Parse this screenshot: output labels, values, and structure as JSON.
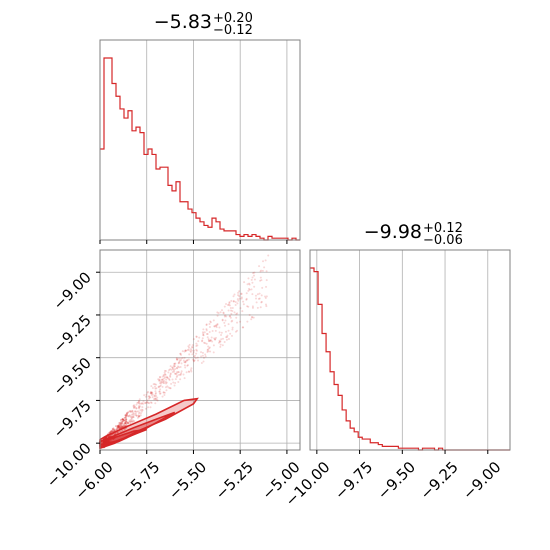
{
  "colors": {
    "accent": "#d62728",
    "grid": "#b0b0b0",
    "frame": "#808080"
  },
  "chart_data": [
    {
      "type": "histogram",
      "panel": "top-left marginal",
      "title": {
        "value": "−5.83",
        "upper": "+0.20",
        "lower": "−0.12"
      },
      "xlim": [
        -6.0,
        -4.93
      ],
      "xticks": [
        -6.0,
        -5.75,
        -5.5,
        -5.25,
        -5.0
      ],
      "bin_edges_start": -6.0,
      "bin_width": 0.0214,
      "counts": [
        0.5,
        1.0,
        1.0,
        0.86,
        0.79,
        0.72,
        0.67,
        0.71,
        0.6,
        0.62,
        0.59,
        0.47,
        0.5,
        0.47,
        0.39,
        0.4,
        0.4,
        0.3,
        0.27,
        0.32,
        0.21,
        0.21,
        0.17,
        0.15,
        0.12,
        0.1,
        0.08,
        0.07,
        0.12,
        0.1,
        0.06,
        0.05,
        0.05,
        0.05,
        0.03,
        0.02,
        0.03,
        0.02,
        0.03,
        0.02,
        0.01,
        0.0,
        0.02,
        0.01,
        0.01,
        0.01,
        0.01,
        0.0,
        0.01,
        0.0
      ]
    },
    {
      "type": "histogram",
      "panel": "bottom-right marginal",
      "title": {
        "value": "−9.98",
        "upper": "+0.12",
        "lower": "−0.06"
      },
      "xlim": [
        -10.04,
        -8.87
      ],
      "xticks": [
        -10.0,
        -9.75,
        -9.5,
        -9.25,
        -9.0
      ],
      "xtick_labels": [
        "−10.00",
        "−9.75",
        "−9.50",
        "−9.25",
        "−9.00"
      ],
      "bin_edges_start": -10.04,
      "bin_width": 0.0235,
      "counts": [
        1.0,
        0.98,
        0.8,
        0.64,
        0.54,
        0.43,
        0.36,
        0.3,
        0.22,
        0.16,
        0.12,
        0.1,
        0.07,
        0.06,
        0.06,
        0.04,
        0.04,
        0.03,
        0.02,
        0.02,
        0.02,
        0.02,
        0.01,
        0.01,
        0.01,
        0.01,
        0.01,
        0.0,
        0.01,
        0.01,
        0.01,
        0.0,
        0.01,
        0.0,
        0.0,
        0.0,
        0.0,
        0.0,
        0.0,
        0.0,
        0.0,
        0.0,
        0.0,
        0.0,
        0.0,
        0.0,
        0.0,
        0.0,
        0.0,
        0.0
      ]
    },
    {
      "type": "scatter",
      "panel": "bottom-left 2D density",
      "xlim": [
        -6.0,
        -4.93
      ],
      "ylim": [
        -10.04,
        -8.87
      ],
      "xticks": [
        -6.0,
        -5.75,
        -5.5,
        -5.25,
        -5.0
      ],
      "xtick_labels": [
        "−6.00",
        "−5.75",
        "−5.50",
        "−5.25",
        "−5.00"
      ],
      "yticks": [
        -10.0,
        -9.75,
        -9.5,
        -9.25,
        -9.0
      ],
      "ytick_labels": [
        "−10.00",
        "−9.75",
        "−9.50",
        "−9.25",
        "−9.00"
      ],
      "trend": {
        "x_start": -5.98,
        "y_start": -10.0,
        "x_end": -5.1,
        "y_end": -9.05
      },
      "contour_levels": [
        [
          [
            -6.0,
            -10.03
          ],
          [
            -5.92,
            -10.0
          ],
          [
            -5.8,
            -9.93
          ],
          [
            -5.65,
            -9.86
          ],
          [
            -5.5,
            -9.77
          ],
          [
            -5.48,
            -9.74
          ],
          [
            -5.55,
            -9.75
          ],
          [
            -5.7,
            -9.83
          ],
          [
            -5.85,
            -9.9
          ],
          [
            -5.97,
            -9.96
          ],
          [
            -6.0,
            -9.98
          ]
        ],
        [
          [
            -6.0,
            -10.02
          ],
          [
            -5.9,
            -9.99
          ],
          [
            -5.78,
            -9.93
          ],
          [
            -5.65,
            -9.85
          ],
          [
            -5.6,
            -9.82
          ],
          [
            -5.7,
            -9.86
          ],
          [
            -5.82,
            -9.91
          ],
          [
            -5.93,
            -9.96
          ],
          [
            -6.0,
            -9.99
          ]
        ],
        [
          [
            -6.0,
            -10.01
          ],
          [
            -5.92,
            -9.99
          ],
          [
            -5.82,
            -9.95
          ],
          [
            -5.75,
            -9.92
          ],
          [
            -5.82,
            -9.93
          ],
          [
            -5.93,
            -9.97
          ],
          [
            -6.0,
            -9.99
          ]
        ]
      ]
    }
  ]
}
